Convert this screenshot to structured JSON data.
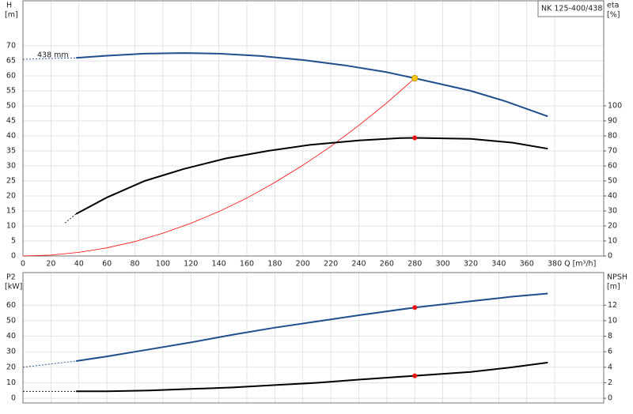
{
  "title": "NK 125-400/438",
  "chart_data": [
    {
      "type": "line",
      "ylabel": "H",
      "yunit": "[m]",
      "y2label": "eta",
      "y2unit": "[%]",
      "xlabel": "Q [m³/h]",
      "xlim": [
        0,
        415
      ],
      "xticks": [
        0,
        20,
        40,
        60,
        80,
        100,
        120,
        140,
        160,
        180,
        200,
        220,
        240,
        260,
        280,
        300,
        320,
        340,
        360,
        380
      ],
      "ylim": [
        0,
        85
      ],
      "yticks": [
        0,
        5,
        10,
        15,
        20,
        25,
        30,
        35,
        40,
        45,
        50,
        55,
        60,
        65,
        70
      ],
      "y2lim": [
        0,
        170
      ],
      "y2ticks": [
        0,
        10,
        20,
        30,
        40,
        50,
        60,
        70,
        80,
        90,
        100
      ],
      "grid": true,
      "annotation": "438 mm",
      "series": [
        {
          "color": "#1f4e8c",
          "dashed": true,
          "x": [
            0,
            38
          ],
          "values": [
            65.5,
            66
          ]
        },
        {
          "color": "#1f4e8c",
          "x": [
            38,
            60,
            87,
            115,
            140,
            170,
            200,
            230,
            260,
            280,
            320,
            345,
            375
          ],
          "values": [
            66,
            66.7,
            67.4,
            67.6,
            67.4,
            66.6,
            65.3,
            63.5,
            61.2,
            59.2,
            55,
            51.5,
            46.5
          ]
        },
        {
          "color": "#ff0000",
          "thin": true,
          "x": [
            0,
            20,
            40,
            60,
            80,
            100,
            120,
            140,
            160,
            180,
            200,
            220,
            240,
            260,
            280
          ],
          "values": [
            0,
            0.3,
            1.2,
            2.7,
            4.8,
            7.6,
            10.9,
            14.8,
            19.3,
            24.5,
            30.2,
            36.5,
            43.5,
            51,
            59.2
          ]
        },
        {
          "color": "#000000",
          "dashed": true,
          "axis": "y2",
          "x": [
            30,
            38
          ],
          "values": [
            22,
            28
          ]
        },
        {
          "color": "#000000",
          "axis": "y2",
          "x": [
            38,
            60,
            87,
            115,
            145,
            175,
            205,
            240,
            270,
            280,
            320,
            350,
            375
          ],
          "values": [
            28,
            39,
            50,
            58,
            65,
            70,
            74,
            77,
            78.5,
            78.7,
            78,
            75.5,
            71.5
          ]
        }
      ],
      "markers": [
        {
          "x": 280,
          "y": 59.2,
          "color": "#f5c518"
        },
        {
          "x": 280,
          "y": 78.7,
          "axis": "y2",
          "color": "#ee1111"
        }
      ]
    },
    {
      "type": "line",
      "ylabel": "P2",
      "yunit": "[kW]",
      "y2label": "NPSH",
      "y2unit": "[m]",
      "xlim": [
        0,
        415
      ],
      "ylim": [
        -3,
        81
      ],
      "yticks": [
        0,
        10,
        20,
        30,
        40,
        50,
        60
      ],
      "y2lim": [
        -0.6,
        16.2
      ],
      "y2ticks": [
        0,
        2,
        4,
        6,
        8,
        10,
        12
      ],
      "grid": true,
      "series": [
        {
          "color": "#1f4e8c",
          "dashed": true,
          "x": [
            0,
            38
          ],
          "values": [
            20,
            24
          ]
        },
        {
          "color": "#1f4e8c",
          "x": [
            38,
            60,
            87,
            120,
            150,
            180,
            210,
            240,
            280,
            320,
            350,
            375
          ],
          "values": [
            24,
            27,
            31,
            36,
            41,
            45.5,
            49.5,
            53.5,
            58.5,
            62.5,
            65.5,
            67.5
          ]
        },
        {
          "color": "#000000",
          "dashed": true,
          "axis": "y2",
          "x": [
            0,
            38
          ],
          "values": [
            0.9,
            0.9
          ]
        },
        {
          "color": "#000000",
          "axis": "y2",
          "x": [
            38,
            60,
            90,
            120,
            150,
            180,
            210,
            240,
            280,
            320,
            350,
            375
          ],
          "values": [
            0.9,
            0.9,
            1,
            1.2,
            1.4,
            1.7,
            2,
            2.4,
            2.9,
            3.4,
            4,
            4.6
          ]
        }
      ],
      "markers": [
        {
          "x": 280,
          "y": 58.5,
          "color": "#ee1111"
        },
        {
          "x": 280,
          "y": 2.9,
          "axis": "y2",
          "color": "#ee1111"
        }
      ]
    }
  ]
}
